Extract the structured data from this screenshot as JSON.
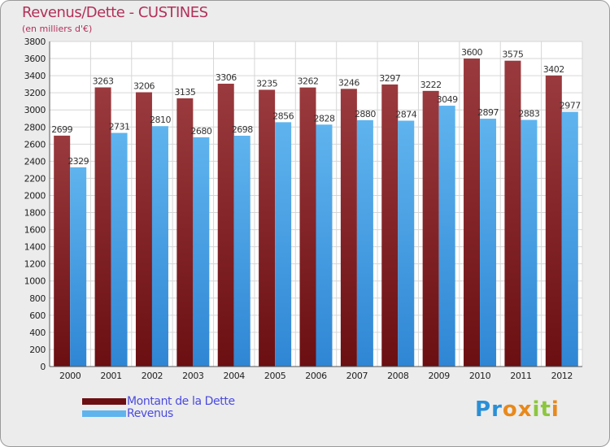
{
  "title": "Revenus/Dette - CUSTINES",
  "subtitle": "(en milliers d'€)",
  "logo": {
    "letters": [
      {
        "ch": "P",
        "color": "#2a8fd6"
      },
      {
        "ch": "r",
        "color": "#2a8fd6"
      },
      {
        "ch": "o",
        "color": "#e8891c"
      },
      {
        "ch": "x",
        "color": "#e8891c"
      },
      {
        "ch": "i",
        "color": "#8cc63f"
      },
      {
        "ch": "t",
        "color": "#8cc63f"
      },
      {
        "ch": "i",
        "color": "#e8891c"
      }
    ]
  },
  "chart_data": {
    "type": "bar",
    "categories": [
      "2000",
      "2001",
      "2002",
      "2003",
      "2004",
      "2005",
      "2006",
      "2007",
      "2008",
      "2009",
      "2010",
      "2011",
      "2012"
    ],
    "series": [
      {
        "name": "Montant de la Dette",
        "color": "#6b0f12",
        "color_light": "#9a3a3e",
        "values": [
          2699,
          3263,
          3206,
          3135,
          3306,
          3235,
          3262,
          3246,
          3297,
          3222,
          3600,
          3575,
          3402
        ]
      },
      {
        "name": "Revenus",
        "color": "#2f86d4",
        "color_light": "#5fb4ee",
        "values": [
          2329,
          2731,
          2810,
          2680,
          2698,
          2856,
          2828,
          2880,
          2874,
          3049,
          2897,
          2883,
          2977
        ]
      }
    ],
    "ylim": [
      0,
      3800
    ],
    "ytick_step": 200,
    "grid": true,
    "legend": "bottom-left"
  }
}
